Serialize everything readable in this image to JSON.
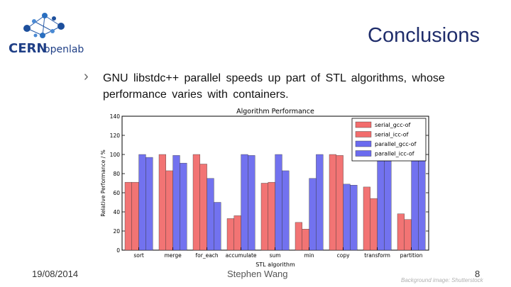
{
  "slide": {
    "title": "Conclusions",
    "bullet": "GNU libstdc++ parallel speeds up part of STL algorithms, whose performance varies with containers.",
    "footer_date": "19/08/2014",
    "footer_author": "Stephen Wang",
    "footer_page": "8",
    "footer_credit": "Background image: Shutterstock",
    "logo_text": "CERNopenlab"
  },
  "chart_data": {
    "type": "bar",
    "title": "Algorithm Performance",
    "xlabel": "STL algorithm",
    "ylabel": "Relative Performance / %",
    "ylim": [
      0,
      140
    ],
    "yticks": [
      0,
      20,
      40,
      60,
      80,
      100,
      120,
      140
    ],
    "grid": false,
    "legend_position": "top-right",
    "categories": [
      "sort",
      "merge",
      "for_each",
      "accumulate",
      "sum",
      "min",
      "copy",
      "transform",
      "partition"
    ],
    "series": [
      {
        "name": "serial_gcc-of",
        "color": "#f26d6d",
        "values": [
          71,
          100,
          100,
          33,
          70,
          29,
          100,
          66,
          38
        ]
      },
      {
        "name": "serial_icc-of",
        "color": "#f26d6d",
        "values": [
          71,
          83,
          90,
          36,
          71,
          22,
          99,
          54,
          32
        ]
      },
      {
        "name": "parallel_gcc-of",
        "color": "#6b6bef",
        "values": [
          100,
          99,
          75,
          100,
          100,
          75,
          69,
          100,
          100
        ]
      },
      {
        "name": "parallel_icc-of",
        "color": "#6b6bef",
        "values": [
          97,
          91,
          50,
          99,
          83,
          100,
          68,
          100,
          100
        ]
      }
    ]
  }
}
